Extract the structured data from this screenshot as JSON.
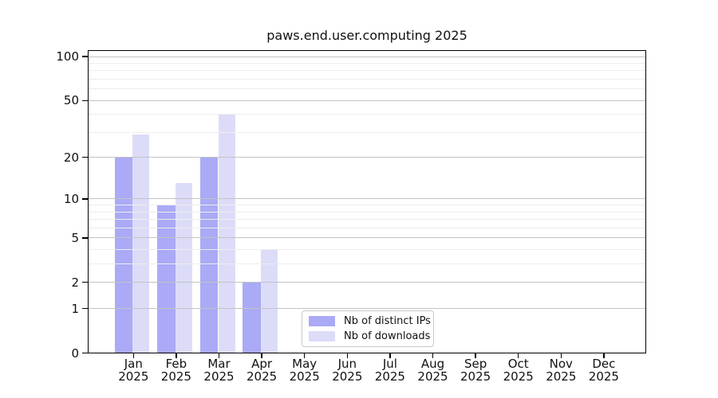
{
  "title": "paws.end.user.computing 2025",
  "chart_data": {
    "type": "bar",
    "title": "paws.end.user.computing 2025",
    "categories": [
      "Jan 2025",
      "Feb 2025",
      "Mar 2025",
      "Apr 2025",
      "May 2025",
      "Jun 2025",
      "Jul 2025",
      "Aug 2025",
      "Sep 2025",
      "Oct 2025",
      "Nov 2025",
      "Dec 2025"
    ],
    "series": [
      {
        "name": "Nb of distinct IPs",
        "color": "#aaaaf6",
        "values": [
          20,
          9,
          20,
          2,
          0,
          0,
          0,
          0,
          0,
          0,
          0,
          0
        ]
      },
      {
        "name": "Nb of downloads",
        "color": "#dcdcf9",
        "values": [
          29,
          13,
          40,
          4,
          0,
          0,
          0,
          0,
          0,
          0,
          0,
          0
        ]
      }
    ],
    "xlabel": "",
    "ylabel": "",
    "y_scale": "log1p",
    "ylim": [
      0,
      100
    ],
    "y_major_ticks": [
      0,
      1,
      2,
      5,
      10,
      20,
      50,
      100
    ],
    "y_minor_gridlines": [
      3,
      4,
      6,
      7,
      8,
      9,
      30,
      40,
      60,
      70,
      80,
      90
    ],
    "grid": true,
    "legend_position": "lower center"
  },
  "colors": {
    "background": "#ffffff",
    "axis": "#000000",
    "grid_major": "#c3c3c3",
    "grid_minor": "#ededed",
    "text": "#111111",
    "legend_border": "#c9c9c9"
  }
}
